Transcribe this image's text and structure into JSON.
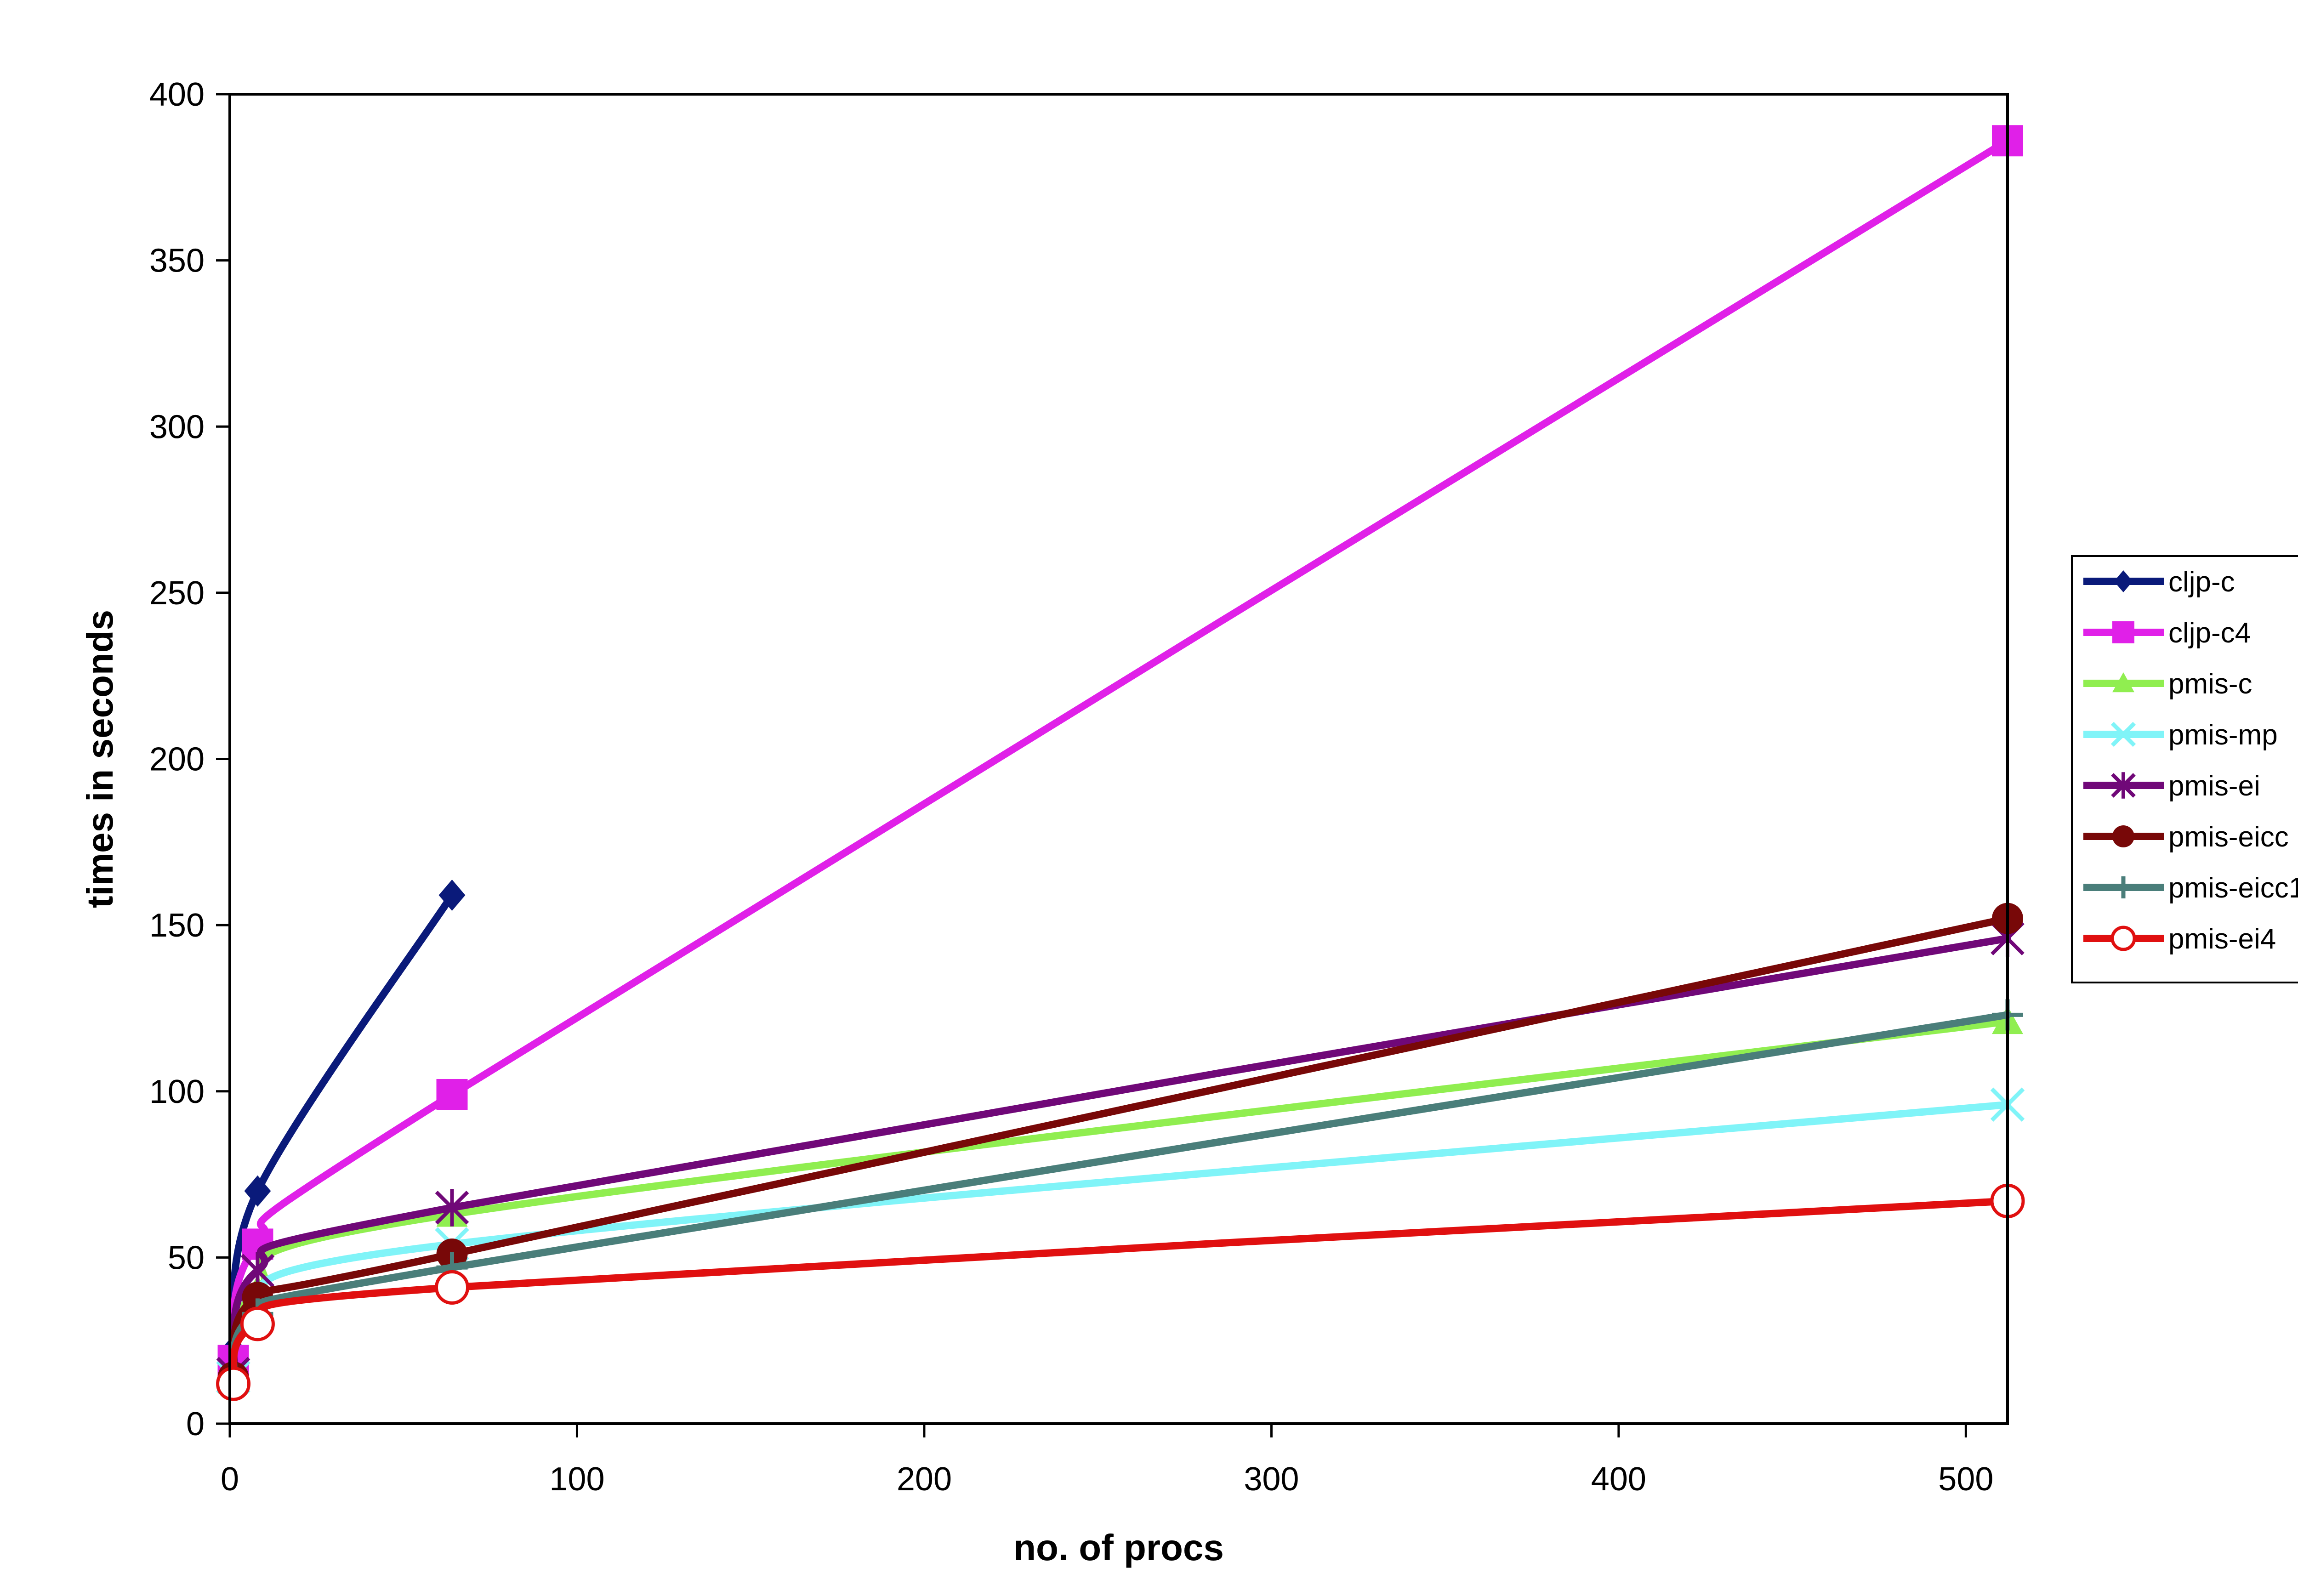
{
  "chart_data": {
    "type": "line",
    "title": "",
    "xlabel": "no. of procs",
    "ylabel": "times in seconds",
    "xlim": [
      0,
      512
    ],
    "ylim": [
      0,
      400
    ],
    "xticks": [
      0,
      100,
      200,
      300,
      400,
      500
    ],
    "yticks": [
      0,
      50,
      100,
      150,
      200,
      250,
      300,
      350,
      400
    ],
    "grid": false,
    "legend_position": "right",
    "series": [
      {
        "name": "cljp-c",
        "color": "#0a1a7a",
        "marker": "diamond",
        "x": [
          1,
          8,
          64
        ],
        "y": [
          22,
          70,
          159
        ]
      },
      {
        "name": "cljp-c4",
        "color": "#e020e8",
        "marker": "square",
        "x": [
          1,
          8,
          64,
          512
        ],
        "y": [
          19,
          54,
          99,
          386
        ]
      },
      {
        "name": "pmis-c",
        "color": "#90ee50",
        "marker": "triangle",
        "x": [
          1,
          8,
          64,
          512
        ],
        "y": [
          14,
          40,
          63,
          121
        ]
      },
      {
        "name": "pmis-mp",
        "color": "#80f4f8",
        "marker": "x",
        "x": [
          1,
          8,
          64,
          512
        ],
        "y": [
          14,
          33,
          54,
          96
        ]
      },
      {
        "name": "pmis-ei",
        "color": "#700878",
        "marker": "star",
        "x": [
          1,
          8,
          64,
          512
        ],
        "y": [
          15,
          46,
          65,
          146
        ]
      },
      {
        "name": "pmis-eicc",
        "color": "#780808",
        "marker": "circle",
        "x": [
          1,
          8,
          64,
          512
        ],
        "y": [
          14,
          38,
          51,
          152
        ]
      },
      {
        "name": "pmis-eicc1",
        "color": "#4a7e7a",
        "marker": "plus",
        "x": [
          1,
          8,
          64,
          512
        ],
        "y": [
          13,
          33,
          47,
          123
        ]
      },
      {
        "name": "pmis-ei4",
        "color": "#e01010",
        "marker": "circle-open",
        "x": [
          1,
          8,
          64,
          512
        ],
        "y": [
          12,
          30,
          41,
          67
        ]
      }
    ]
  }
}
